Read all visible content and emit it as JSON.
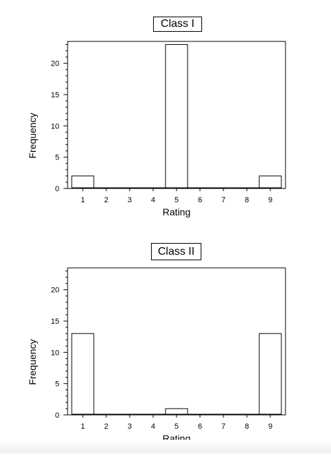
{
  "chart_data": [
    {
      "type": "bar",
      "title": "Class I",
      "xlabel": "Rating",
      "ylabel": "Frequency",
      "categories": [
        "1",
        "2",
        "3",
        "4",
        "5",
        "6",
        "7",
        "8",
        "9"
      ],
      "values": [
        2,
        0,
        0,
        0,
        23,
        0,
        0,
        0,
        2
      ],
      "ylim": [
        0,
        23.5
      ],
      "yticks": [
        0,
        5,
        10,
        15,
        20
      ],
      "grid": false,
      "bar_fill": "#ffffff",
      "bar_stroke": "#000000"
    },
    {
      "type": "bar",
      "title": "Class II",
      "xlabel": "Rating",
      "ylabel": "Frequency",
      "categories": [
        "1",
        "2",
        "3",
        "4",
        "5",
        "6",
        "7",
        "8",
        "9"
      ],
      "values": [
        13,
        0,
        0,
        0,
        1,
        0,
        0,
        0,
        13
      ],
      "ylim": [
        0,
        23.5
      ],
      "yticks": [
        0,
        5,
        10,
        15,
        20
      ],
      "grid": false,
      "bar_fill": "#ffffff",
      "bar_stroke": "#000000"
    }
  ]
}
